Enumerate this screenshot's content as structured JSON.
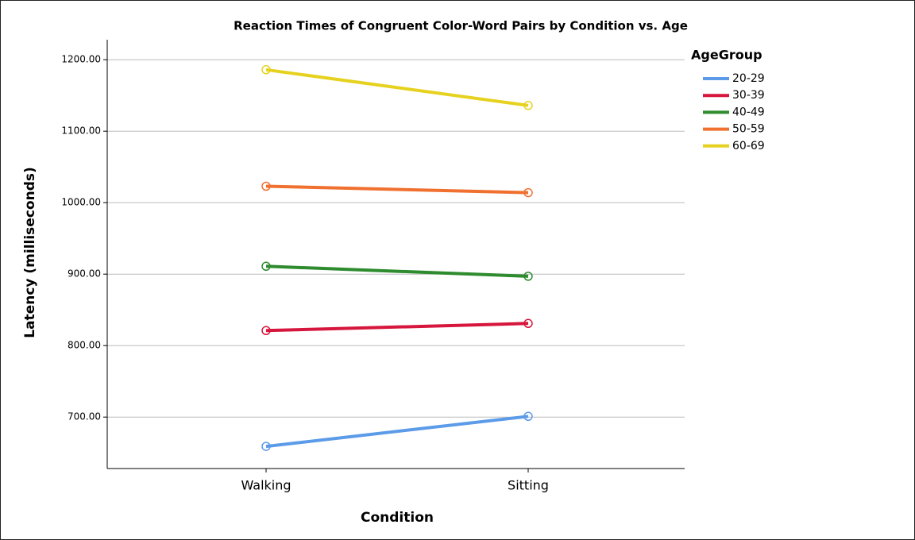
{
  "chart_data": {
    "type": "line",
    "title": "Reaction Times of Congruent Color-Word Pairs by Condition vs. Age",
    "x_label": "Condition",
    "y_label": "Latency (milliseconds)",
    "legend_title": "AgeGroup",
    "categories": [
      "Walking",
      "Sitting"
    ],
    "series": [
      {
        "name": "20-29",
        "color": "#5b9be8",
        "values": [
          659,
          701
        ]
      },
      {
        "name": "30-39",
        "color": "#d6163c",
        "values": [
          821,
          831
        ]
      },
      {
        "name": "40-49",
        "color": "#2e8b2e",
        "values": [
          911,
          897
        ]
      },
      {
        "name": "50-59",
        "color": "#f07030",
        "values": [
          1023,
          1014
        ]
      },
      {
        "name": "60-69",
        "color": "#e6d21e",
        "values": [
          1186,
          1136
        ]
      }
    ],
    "ylim": [
      628,
      1228
    ],
    "yticks": [
      {
        "value": 700,
        "label": "700.00"
      },
      {
        "value": 800,
        "label": "800.00"
      },
      {
        "value": 900,
        "label": "900.00"
      },
      {
        "value": 1000,
        "label": "1000.00"
      },
      {
        "value": 1100,
        "label": "1100.00"
      },
      {
        "value": 1200,
        "label": "1200.00"
      }
    ],
    "grid": true,
    "legend_position": "right"
  }
}
